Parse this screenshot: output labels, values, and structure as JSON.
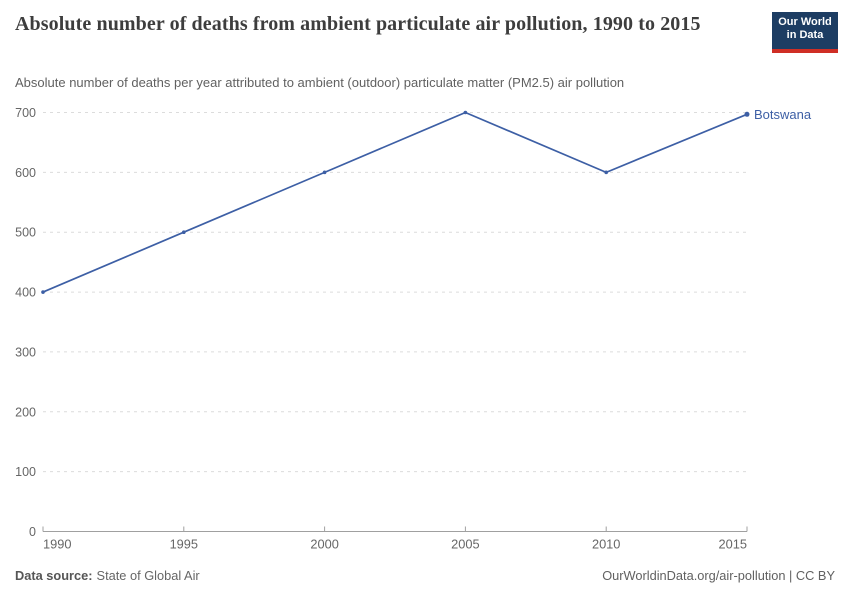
{
  "header": {
    "title": "Absolute number of deaths from ambient particulate air pollution, 1990 to 2015",
    "subtitle": "Absolute number of deaths per year attributed to ambient (outdoor) particulate matter (PM2.5) air pollution",
    "logo": {
      "line1": "Our World",
      "line2": "in Data"
    }
  },
  "chart_data": {
    "type": "line",
    "title": "Absolute number of deaths from ambient particulate air pollution, 1990 to 2015",
    "subtitle": "Absolute number of deaths per year attributed to ambient (outdoor) particulate matter (PM2.5) air pollution",
    "x": [
      1990,
      1995,
      2000,
      2005,
      2010,
      2015
    ],
    "series": [
      {
        "name": "Botswana",
        "color": "#3d5fa5",
        "values": [
          400,
          500,
          600,
          700,
          600,
          697
        ]
      }
    ],
    "xlabel": "",
    "ylabel": "",
    "xlim": [
      1990,
      2015
    ],
    "ylim": [
      0,
      700
    ],
    "xticks": [
      1990,
      1995,
      2000,
      2005,
      2010,
      2015
    ],
    "yticks": [
      0,
      100,
      200,
      300,
      400,
      500,
      600,
      700
    ],
    "grid": "horizontal-dashed",
    "legend_position": "line-end-label"
  },
  "footer": {
    "source_label": "Data source:",
    "source_value": "State of Global Air",
    "credit": "OurWorldinData.org/air-pollution | CC BY"
  },
  "colors": {
    "line": "#3d5fa5",
    "logo_bg": "#1d3d63",
    "logo_accent": "#cf2e25",
    "grid": "#dcdcdc",
    "axis": "#a0a0a0",
    "tick_label": "#666666",
    "title_text": "#3d3d3d",
    "subtitle_text": "#616161"
  }
}
